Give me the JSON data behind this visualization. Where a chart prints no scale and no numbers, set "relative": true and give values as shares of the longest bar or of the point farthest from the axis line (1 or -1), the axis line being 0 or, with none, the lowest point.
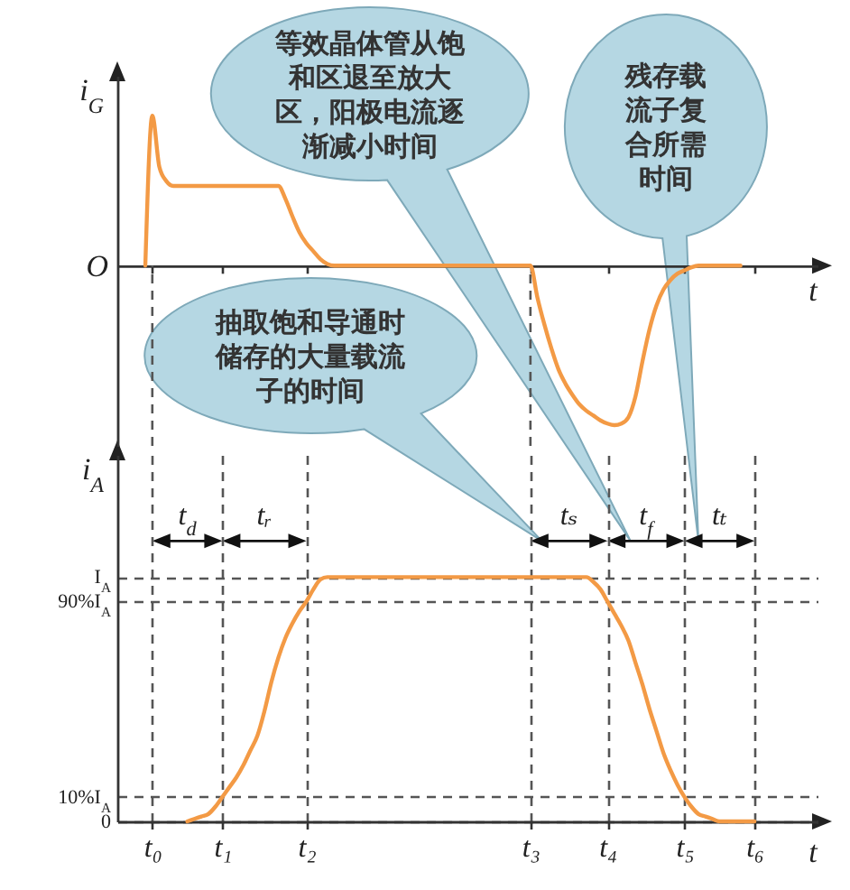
{
  "chart_data": [
    {
      "type": "line",
      "relative": true,
      "ylabel": "i$_{G}$",
      "xlabel": "t",
      "color": "#f39a45",
      "categories": [
        null,
        null,
        null,
        null,
        null,
        "t₀",
        null,
        null,
        null,
        null,
        null,
        null,
        null,
        null,
        null,
        "t₁",
        null,
        null,
        null,
        null,
        null,
        null,
        null,
        null,
        null,
        null,
        null,
        "t₂",
        null,
        null,
        null,
        null,
        null,
        null,
        null,
        null,
        null,
        null,
        null,
        null,
        null,
        null,
        null,
        null,
        null,
        null,
        null,
        null,
        null,
        null,
        null,
        null,
        null,
        null,
        null,
        null,
        null,
        null,
        null,
        "t₃",
        null,
        null,
        null,
        null,
        null,
        null,
        null,
        null,
        null,
        null,
        "t₄",
        null,
        null,
        null,
        null,
        null,
        null,
        null,
        null,
        null,
        null,
        "t₅",
        null,
        null,
        null,
        null,
        null,
        null,
        null,
        null,
        null,
        "t₆",
        null,
        null,
        null,
        null,
        null,
        null,
        null,
        null,
        null
      ],
      "values": [
        null,
        null,
        null,
        null,
        0,
        0.94,
        0.62,
        0.53,
        0.5,
        0.5,
        0.5,
        0.5,
        0.5,
        0.5,
        0.5,
        0.5,
        0.5,
        0.5,
        0.5,
        0.5,
        0.5,
        0.5,
        0.5,
        0.5,
        0.42,
        0.31,
        0.21,
        0.14,
        0.09,
        0.04,
        0.01,
        0,
        0,
        0,
        0,
        0,
        0,
        0,
        0,
        0,
        0,
        0,
        0,
        0,
        0,
        0,
        0,
        0,
        0,
        0,
        0,
        0,
        0,
        0,
        0,
        0,
        0,
        0,
        0,
        0,
        -0.2,
        -0.37,
        -0.52,
        -0.65,
        -0.74,
        -0.81,
        -0.87,
        -0.91,
        -0.94,
        -0.97,
        -0.99,
        -1,
        -0.99,
        -0.95,
        -0.82,
        -0.6,
        -0.4,
        -0.25,
        -0.15,
        -0.09,
        -0.05,
        -0.03,
        -0.01,
        0,
        0,
        0,
        0,
        0,
        0,
        0,
        null,
        null,
        null,
        null,
        null,
        null,
        null,
        null,
        null,
        null,
        null
      ],
      "tick_labels": false,
      "ref_lines": [
        {
          "axis": "x",
          "value": "t₀",
          "line_style": "dashed",
          "color": "#555555"
        },
        {
          "axis": "x",
          "value": "t₃",
          "line_style": "dashed",
          "color": "#555555"
        }
      ],
      "annotations": [
        "O"
      ]
    },
    {
      "type": "line",
      "ylabel": "i$_{A}$",
      "xlabel": "t",
      "color": "#f39a45",
      "categories": [
        null,
        null,
        null,
        null,
        null,
        "t₀",
        null,
        null,
        null,
        null,
        null,
        null,
        null,
        null,
        null,
        "t₁",
        null,
        null,
        null,
        null,
        null,
        null,
        null,
        null,
        null,
        null,
        null,
        "t₂",
        null,
        null,
        null,
        null,
        null,
        null,
        null,
        null,
        null,
        null,
        null,
        null,
        null,
        null,
        null,
        null,
        null,
        null,
        null,
        null,
        null,
        null,
        null,
        null,
        null,
        null,
        null,
        null,
        null,
        null,
        null,
        "t₃",
        null,
        null,
        null,
        null,
        null,
        null,
        null,
        null,
        null,
        null,
        "t₄",
        null,
        null,
        null,
        null,
        null,
        null,
        null,
        null,
        null,
        null,
        "t₅",
        null,
        null,
        null,
        null,
        null,
        null,
        null,
        null,
        null,
        "t₆",
        null,
        null,
        null,
        null,
        null,
        null,
        null,
        null,
        null
      ],
      "values": [
        null,
        null,
        null,
        null,
        null,
        null,
        null,
        null,
        null,
        null,
        0,
        0.01,
        0.02,
        0.03,
        0.06,
        0.1,
        0.14,
        0.18,
        0.23,
        0.29,
        0.35,
        0.45,
        0.57,
        0.67,
        0.75,
        0.81,
        0.86,
        0.9,
        0.95,
        0.99,
        1,
        1,
        1,
        1,
        1,
        1,
        1,
        1,
        1,
        1,
        1,
        1,
        1,
        1,
        1,
        1,
        1,
        1,
        1,
        1,
        1,
        1,
        1,
        1,
        1,
        1,
        1,
        1,
        1,
        1,
        1,
        1,
        1,
        1,
        1,
        1,
        1,
        1,
        0.98,
        0.95,
        0.9,
        0.85,
        0.8,
        0.74,
        0.65,
        0.56,
        0.46,
        0.37,
        0.28,
        0.21,
        0.15,
        0.1,
        0.06,
        0.03,
        0.02,
        0.01,
        0,
        0,
        0,
        0,
        0,
        0,
        null,
        null,
        null,
        null,
        null,
        null,
        null,
        null,
        null
      ],
      "ylim": [
        0,
        1.5
      ],
      "yticks": [
        0,
        {
          "value": 0.1,
          "label": "10%I$_{A}$"
        },
        {
          "value": 0.9,
          "label": "90%I$_{A}$"
        },
        {
          "value": 1,
          "label": "I$_{A}$"
        }
      ],
      "grid": true,
      "annotations": [
        "等效晶体管从饱和区退至放大区，阳极电流逐渐减小时间",
        "残存载流子复合所需时间",
        "抽取饱和导通时储存的大量载流子的时间",
        "t$_{d}$",
        "tᵣ",
        "tₛ",
        "t$_{f}$",
        "tₜ"
      ]
    }
  ]
}
